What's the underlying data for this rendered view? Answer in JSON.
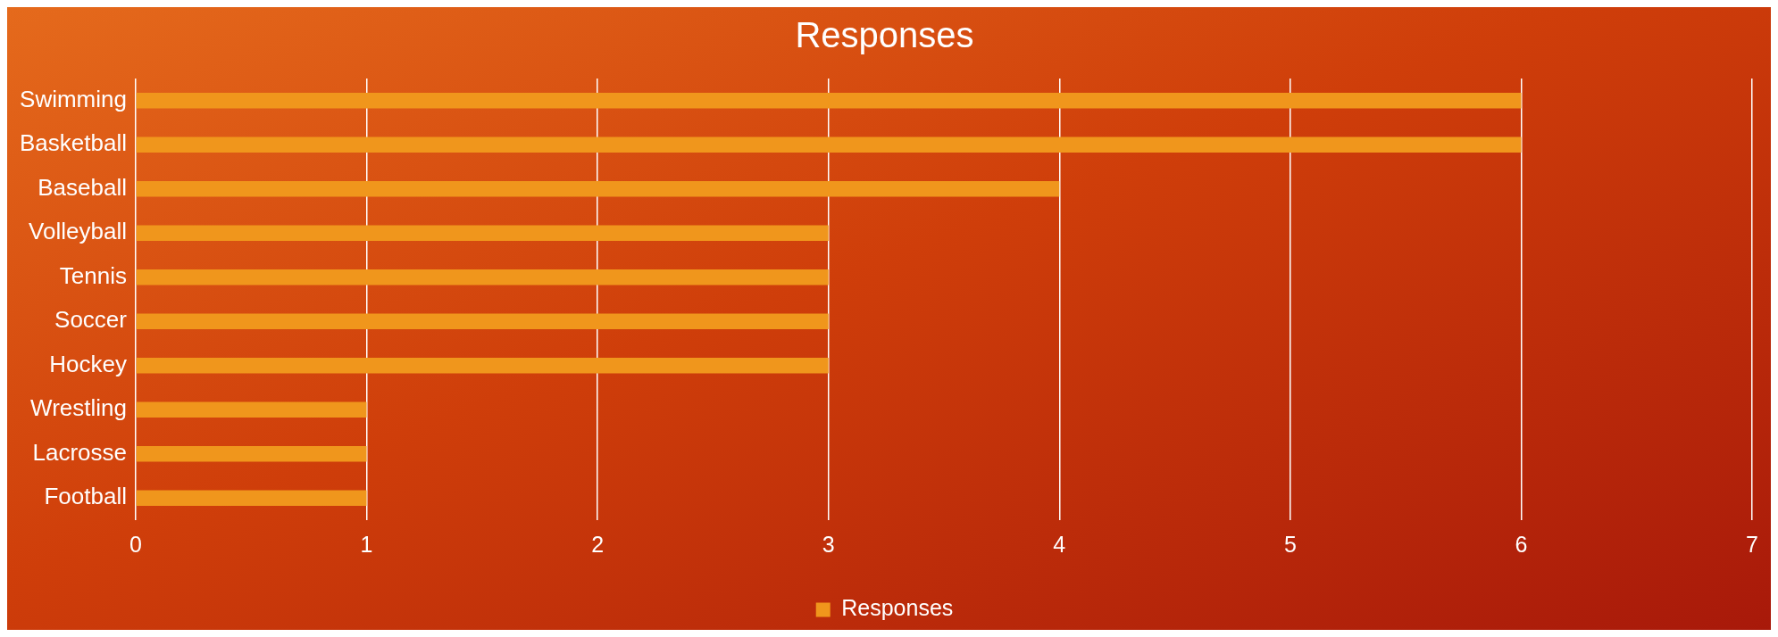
{
  "chart_data": {
    "type": "bar",
    "orientation": "horizontal",
    "title": "Responses",
    "categories": [
      "Swimming",
      "Basketball",
      "Baseball",
      "Volleyball",
      "Tennis",
      "Soccer",
      "Hockey",
      "Wrestling",
      "Lacrosse",
      "Football"
    ],
    "series": [
      {
        "name": "Responses",
        "color": "#f0961c",
        "values": [
          6,
          6,
          4,
          3,
          3,
          3,
          3,
          1,
          1,
          1
        ]
      }
    ],
    "xlim": [
      0,
      7
    ],
    "xticks": [
      0,
      1,
      2,
      3,
      4,
      5,
      6,
      7
    ],
    "grid": "x",
    "legend": "bottom"
  }
}
